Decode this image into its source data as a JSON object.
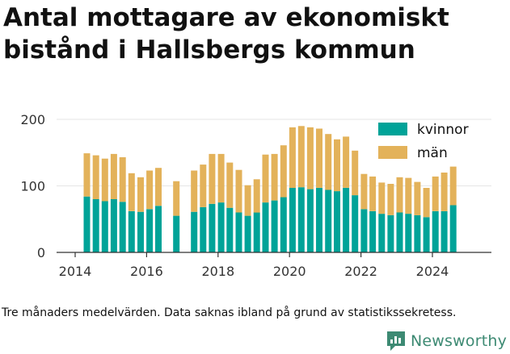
{
  "title": "Antal mottagare av ekonomiskt bistånd i Hallsbergs kommun",
  "footnote": "Tre månaders medelvärden. Data saknas ibland på grund av statistikssekretess.",
  "brand": {
    "name": "Newsworthy"
  },
  "colors": {
    "kvinnor": "#00a398",
    "man": "#e3b25a",
    "grid": "#e6e6e6",
    "brand": "#3d8a73"
  },
  "chart_data": {
    "type": "bar",
    "stacked": true,
    "x_tick_labels": [
      "2014",
      "2016",
      "2018",
      "2020",
      "2022",
      "2024"
    ],
    "y_tick_labels": [
      "0",
      "100",
      "200"
    ],
    "ylim": [
      0,
      200
    ],
    "legend_position": "top-right",
    "grid": "horizontal",
    "x": [
      "2014-05",
      "2014-08",
      "2014-11",
      "2015-02",
      "2015-05",
      "2015-08",
      "2015-11",
      "2016-02",
      "2016-05",
      "2016-08",
      "2016-11",
      "2017-02",
      "2017-05",
      "2017-08",
      "2017-11",
      "2018-02",
      "2018-05",
      "2018-08",
      "2018-11",
      "2019-02",
      "2019-05",
      "2019-08",
      "2019-11",
      "2020-02",
      "2020-05",
      "2020-08",
      "2020-11",
      "2021-02",
      "2021-05",
      "2021-08",
      "2021-11",
      "2022-02",
      "2022-05",
      "2022-08",
      "2022-11",
      "2023-02",
      "2023-05",
      "2023-08",
      "2023-11",
      "2024-02",
      "2024-05",
      "2024-08"
    ],
    "series": [
      {
        "name": "kvinnor",
        "color": "#00a398",
        "values": [
          84,
          80,
          77,
          80,
          76,
          62,
          61,
          65,
          70,
          null,
          55,
          null,
          61,
          68,
          73,
          75,
          67,
          60,
          55,
          60,
          75,
          78,
          83,
          97,
          98,
          95,
          97,
          94,
          92,
          97,
          86,
          65,
          62,
          58,
          56,
          60,
          58,
          56,
          53,
          62,
          62,
          71
        ]
      },
      {
        "name": "män",
        "color": "#e3b25a",
        "values": [
          65,
          66,
          64,
          68,
          67,
          57,
          52,
          58,
          57,
          null,
          52,
          null,
          62,
          64,
          75,
          73,
          68,
          64,
          46,
          50,
          72,
          70,
          78,
          91,
          92,
          93,
          89,
          84,
          78,
          77,
          67,
          53,
          52,
          47,
          47,
          53,
          54,
          50,
          44,
          52,
          58,
          58
        ]
      }
    ]
  }
}
